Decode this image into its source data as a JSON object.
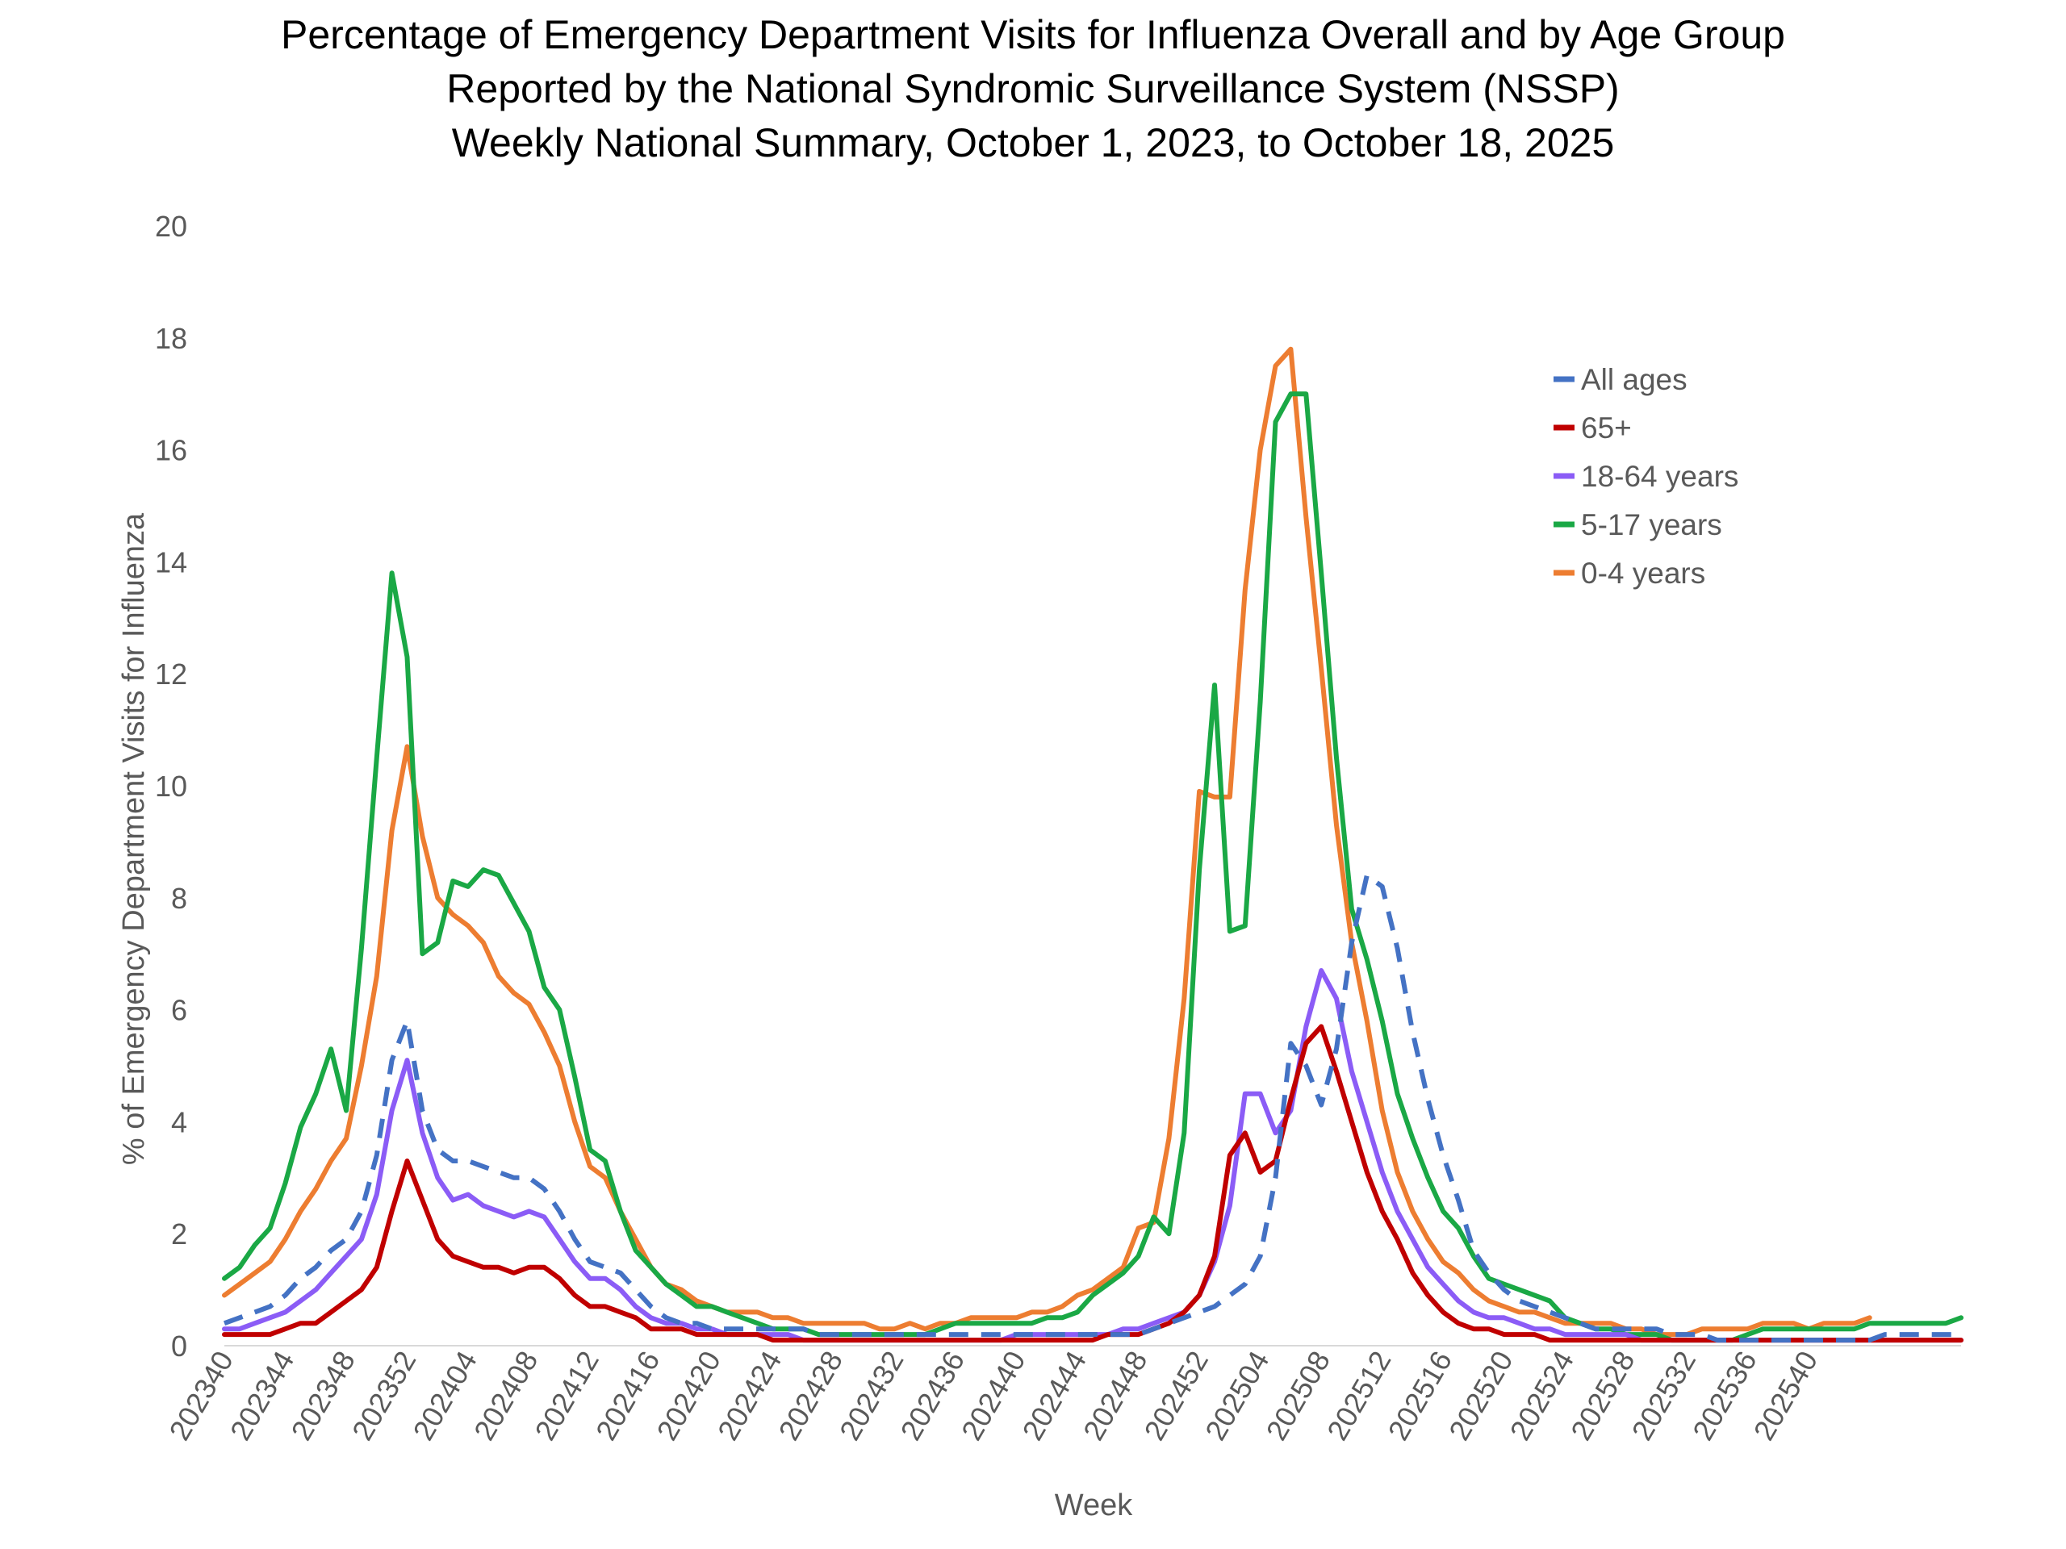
{
  "chart_data": {
    "type": "line",
    "title": [
      "Percentage of Emergency Department Visits for Influenza Overall and by Age Group",
      "Reported by the National Syndromic Surveillance System (NSSP)",
      "Weekly National Summary, October 1, 2023, to  October 18, 2025"
    ],
    "xlabel": "Week",
    "ylabel": "% of Emergency Department Visits for Influenza",
    "ylim": [
      0,
      20
    ],
    "yticks": [
      "0",
      "2",
      "4",
      "6",
      "8",
      "10",
      "12",
      "14",
      "16",
      "18",
      "20"
    ],
    "xticks": [
      "202340",
      "202344",
      "202348",
      "202352",
      "202404",
      "202408",
      "202412",
      "202416",
      "202420",
      "202424",
      "202428",
      "202432",
      "202436",
      "202440",
      "202444",
      "202448",
      "202452",
      "202504",
      "202508",
      "202512",
      "202516",
      "202520",
      "202524",
      "202528",
      "202532",
      "202536",
      "202540"
    ],
    "grid": false,
    "legend_position": "top-right",
    "series": [
      {
        "name": "All ages",
        "color": "#4472C4",
        "dash": true,
        "values": [
          0.4,
          0.5,
          0.6,
          0.7,
          0.9,
          1.2,
          1.4,
          1.7,
          1.9,
          2.4,
          3.4,
          5.1,
          5.8,
          4.2,
          3.5,
          3.3,
          3.3,
          3.2,
          3.1,
          3.0,
          3.0,
          2.8,
          2.4,
          1.9,
          1.5,
          1.4,
          1.3,
          1.0,
          0.7,
          0.5,
          0.4,
          0.4,
          0.3,
          0.3,
          0.3,
          0.3,
          0.3,
          0.3,
          0.3,
          0.2,
          0.2,
          0.2,
          0.2,
          0.2,
          0.2,
          0.2,
          0.2,
          0.2,
          0.2,
          0.2,
          0.2,
          0.2,
          0.2,
          0.2,
          0.2,
          0.2,
          0.2,
          0.2,
          0.2,
          0.2,
          0.2,
          0.3,
          0.4,
          0.5,
          0.6,
          0.7,
          0.9,
          1.1,
          1.6,
          3.0,
          5.4,
          5.0,
          4.3,
          5.3,
          7.2,
          8.4,
          8.2,
          7.1,
          5.6,
          4.4,
          3.4,
          2.6,
          1.7,
          1.3,
          1.0,
          0.8,
          0.7,
          0.6,
          0.5,
          0.4,
          0.3,
          0.3,
          0.3,
          0.3,
          0.3,
          0.2,
          0.2,
          0.2,
          0.1,
          0.1,
          0.1,
          0.1,
          0.1,
          0.1,
          0.1,
          0.1,
          0.1,
          0.1,
          0.1,
          0.2,
          0.2,
          0.2,
          0.2,
          0.2,
          0.2
        ]
      },
      {
        "name": "65+",
        "color": "#C00000",
        "dash": false,
        "values": [
          0.2,
          0.2,
          0.2,
          0.2,
          0.3,
          0.4,
          0.4,
          0.6,
          0.8,
          1.0,
          1.4,
          2.4,
          3.3,
          2.6,
          1.9,
          1.6,
          1.5,
          1.4,
          1.4,
          1.3,
          1.4,
          1.4,
          1.2,
          0.9,
          0.7,
          0.7,
          0.6,
          0.5,
          0.3,
          0.3,
          0.3,
          0.2,
          0.2,
          0.2,
          0.2,
          0.2,
          0.1,
          0.1,
          0.1,
          0.1,
          0.1,
          0.1,
          0.1,
          0.1,
          0.1,
          0.1,
          0.1,
          0.1,
          0.1,
          0.1,
          0.1,
          0.1,
          0.1,
          0.1,
          0.1,
          0.1,
          0.1,
          0.1,
          0.2,
          0.2,
          0.2,
          0.3,
          0.4,
          0.6,
          0.9,
          1.6,
          3.4,
          3.8,
          3.1,
          3.3,
          4.4,
          5.4,
          5.7,
          4.9,
          4.0,
          3.1,
          2.4,
          1.9,
          1.3,
          0.9,
          0.6,
          0.4,
          0.3,
          0.3,
          0.2,
          0.2,
          0.2,
          0.1,
          0.1,
          0.1,
          0.1,
          0.1,
          0.1,
          0.1,
          0.1,
          0.1,
          0.1,
          0.1,
          0.1,
          0.1,
          0.1,
          0.1,
          0.1,
          0.1,
          0.1,
          0.1,
          0.1,
          0.1,
          0.1,
          0.1,
          0.1,
          0.1,
          0.1,
          0.1,
          0.1
        ]
      },
      {
        "name": "18-64 years",
        "color": "#8B5CF6",
        "dash": false,
        "values": [
          0.3,
          0.3,
          0.4,
          0.5,
          0.6,
          0.8,
          1.0,
          1.3,
          1.6,
          1.9,
          2.7,
          4.2,
          5.1,
          3.8,
          3.0,
          2.6,
          2.7,
          2.5,
          2.4,
          2.3,
          2.4,
          2.3,
          1.9,
          1.5,
          1.2,
          1.2,
          1.0,
          0.7,
          0.5,
          0.4,
          0.4,
          0.3,
          0.3,
          0.2,
          0.2,
          0.2,
          0.2,
          0.2,
          0.1,
          0.1,
          0.1,
          0.1,
          0.1,
          0.1,
          0.1,
          0.1,
          0.1,
          0.1,
          0.1,
          0.1,
          0.1,
          0.1,
          0.2,
          0.2,
          0.2,
          0.2,
          0.2,
          0.2,
          0.2,
          0.3,
          0.3,
          0.4,
          0.5,
          0.6,
          0.9,
          1.5,
          2.5,
          4.5,
          4.5,
          3.8,
          4.2,
          5.7,
          6.7,
          6.2,
          4.9,
          4.0,
          3.1,
          2.4,
          1.9,
          1.4,
          1.1,
          0.8,
          0.6,
          0.5,
          0.5,
          0.4,
          0.3,
          0.3,
          0.2,
          0.2,
          0.2,
          0.2,
          0.2,
          0.1,
          0.1,
          0.1,
          0.1,
          0.1,
          0.1,
          0.1,
          0.1,
          0.1,
          0.1,
          0.1,
          0.1,
          0.1,
          0.1,
          0.1,
          0.1,
          0.1,
          0.1,
          0.1,
          0.1,
          0.1,
          0.1
        ]
      },
      {
        "name": "5-17 years",
        "color": "#1AA845",
        "dash": false,
        "values": [
          1.2,
          1.4,
          1.8,
          2.1,
          2.9,
          3.9,
          4.5,
          5.3,
          4.2,
          7.1,
          10.5,
          13.8,
          12.3,
          7.0,
          7.2,
          8.3,
          8.2,
          8.5,
          8.4,
          7.9,
          7.4,
          6.4,
          6.0,
          4.8,
          3.5,
          3.3,
          2.4,
          1.7,
          1.4,
          1.1,
          0.9,
          0.7,
          0.7,
          0.6,
          0.5,
          0.4,
          0.3,
          0.3,
          0.3,
          0.2,
          0.2,
          0.2,
          0.2,
          0.2,
          0.2,
          0.2,
          0.2,
          0.3,
          0.4,
          0.4,
          0.4,
          0.4,
          0.4,
          0.4,
          0.5,
          0.5,
          0.6,
          0.9,
          1.1,
          1.3,
          1.6,
          2.3,
          2.0,
          3.8,
          8.5,
          11.8,
          7.4,
          7.5,
          11.5,
          16.5,
          17.0,
          17.0,
          13.8,
          10.5,
          7.8,
          6.9,
          5.8,
          4.5,
          3.7,
          3.0,
          2.4,
          2.1,
          1.6,
          1.2,
          1.1,
          1.0,
          0.9,
          0.8,
          0.5,
          0.4,
          0.3,
          0.3,
          0.2,
          0.2,
          0.2,
          0.1,
          0.1,
          0.1,
          0.1,
          0.1,
          0.2,
          0.3,
          0.3,
          0.3,
          0.3,
          0.3,
          0.3,
          0.3,
          0.4,
          0.4,
          0.4,
          0.4,
          0.4,
          0.4,
          0.5
        ]
      },
      {
        "name": "0-4 years",
        "color": "#ED7D31",
        "dash": false,
        "values": [
          0.9,
          1.1,
          1.3,
          1.5,
          1.9,
          2.4,
          2.8,
          3.3,
          3.7,
          5.0,
          6.6,
          9.2,
          10.7,
          9.1,
          8.0,
          7.7,
          7.5,
          7.2,
          6.6,
          6.3,
          6.1,
          5.6,
          5.0,
          4.0,
          3.2,
          3.0,
          2.4,
          1.9,
          1.4,
          1.1,
          1.0,
          0.8,
          0.7,
          0.6,
          0.6,
          0.6,
          0.5,
          0.5,
          0.4,
          0.4,
          0.4,
          0.4,
          0.4,
          0.3,
          0.3,
          0.4,
          0.3,
          0.4,
          0.4,
          0.5,
          0.5,
          0.5,
          0.5,
          0.6,
          0.6,
          0.7,
          0.9,
          1.0,
          1.2,
          1.4,
          2.1,
          2.2,
          3.7,
          6.2,
          9.9,
          9.8,
          9.8,
          13.5,
          16.0,
          17.5,
          17.8,
          14.8,
          12.1,
          9.3,
          7.2,
          5.8,
          4.2,
          3.1,
          2.4,
          1.9,
          1.5,
          1.3,
          1.0,
          0.8,
          0.7,
          0.6,
          0.6,
          0.5,
          0.4,
          0.4,
          0.4,
          0.4,
          0.3,
          0.3,
          0.2,
          0.2,
          0.2,
          0.3,
          0.3,
          0.3,
          0.3,
          0.4,
          0.4,
          0.4,
          0.3,
          0.4,
          0.4,
          0.4,
          0.5
        ]
      }
    ]
  }
}
